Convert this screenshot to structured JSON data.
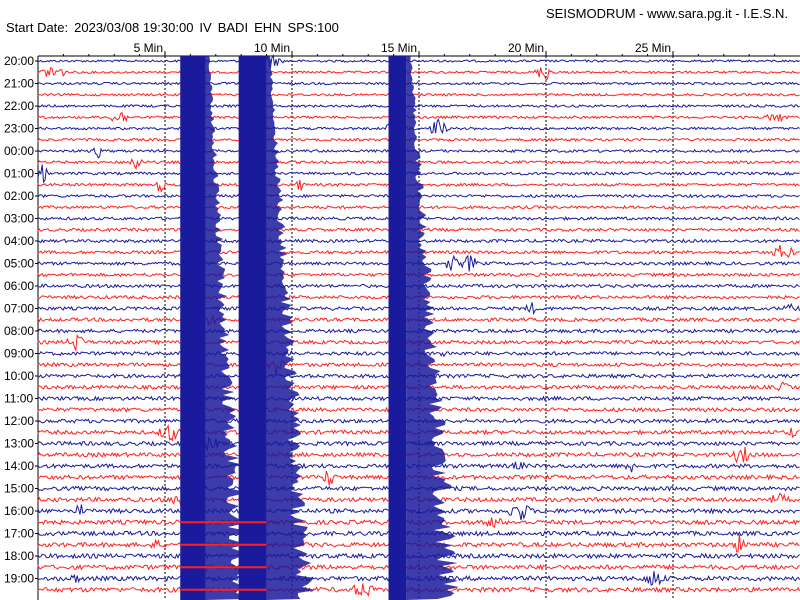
{
  "header": {
    "start_label": "Start Date:",
    "datetime": "2023/03/08 19:30:00",
    "network": "IV",
    "station": "BADI",
    "channel": "EHN",
    "sps": "SPS:100",
    "source": "SEISMODRUM - www.sara.pg.it - I.E.S.N."
  },
  "colors": {
    "trace_a": "#1a1a9c",
    "trace_b": "#ff2020",
    "grid": "#000000",
    "text": "#000000"
  },
  "chart_data": {
    "type": "line",
    "title": "SEISMODRUM - www.sara.pg.it - I.E.S.N.",
    "xlabel": "",
    "ylabel": "",
    "x_unit": "Min",
    "xlim": [
      0,
      30
    ],
    "x_ticks": [
      {
        "value": 5,
        "label": "5 Min"
      },
      {
        "value": 10,
        "label": "10 Min"
      },
      {
        "value": 15,
        "label": "15 Min"
      },
      {
        "value": 20,
        "label": "20 Min"
      },
      {
        "value": 25,
        "label": "25 Min"
      }
    ],
    "hour_labels": [
      "20:00",
      "21:00",
      "22:00",
      "23:00",
      "00:00",
      "01:00",
      "02:00",
      "03:00",
      "04:00",
      "05:00",
      "06:00",
      "07:00",
      "08:00",
      "09:00",
      "10:00",
      "11:00",
      "12:00",
      "13:00",
      "14:00",
      "15:00",
      "16:00",
      "17:00",
      "18:00",
      "19:00"
    ],
    "lines_per_hour": 2,
    "line_colors": [
      "trace_a",
      "trace_b"
    ],
    "saturated_bursts": [
      {
        "start_min": 5.6,
        "end_min": 6.6
      },
      {
        "start_min": 7.9,
        "end_min": 9.0
      },
      {
        "start_min": 13.8,
        "end_min": 14.5
      }
    ],
    "grid": true,
    "legend": "none"
  }
}
